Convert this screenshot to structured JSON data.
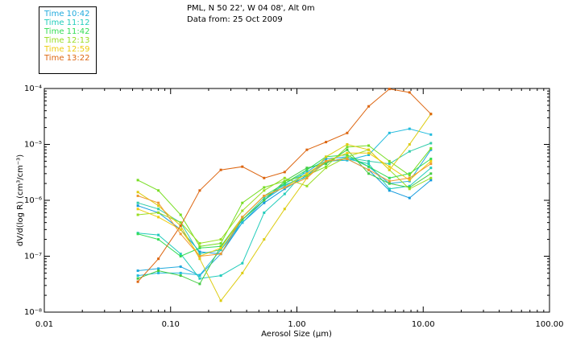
{
  "header": {
    "location": "PML, N 50 22', W 04 08', Alt 0m",
    "date_line": "Data from: 25 Oct 2009"
  },
  "legend": [
    {
      "label": "Time 10:42",
      "color": "#22aadd"
    },
    {
      "label": "Time 11:12",
      "color": "#22ccbb"
    },
    {
      "label": "Time 11:42",
      "color": "#33dd55"
    },
    {
      "label": "Time 12:13",
      "color": "#99dd22"
    },
    {
      "label": "Time 12:59",
      "color": "#eecc11"
    },
    {
      "label": "Time 13:22",
      "color": "#dd6611"
    }
  ],
  "chart_data": {
    "type": "line",
    "xscale": "log",
    "yscale": "log",
    "xlim": [
      0.01,
      100
    ],
    "ylim": [
      1e-08,
      0.0001
    ],
    "xlabel": "Aerosol Size (μm)",
    "ylabel": "dV/d(log R) (cm³/cm⁻³)",
    "x_ticks": [
      "0.01",
      "0.10",
      "1.00",
      "10.00",
      "100.00"
    ],
    "y_ticks": [
      "10⁻⁸",
      "10⁻⁷",
      "10⁻⁶",
      "10⁻⁵",
      "10⁻⁴"
    ],
    "x": [
      0.055,
      0.08,
      0.12,
      0.17,
      0.25,
      0.37,
      0.55,
      0.8,
      1.2,
      1.7,
      2.5,
      3.7,
      5.4,
      7.8,
      11.5
    ],
    "series": [
      {
        "name": "10:42 a",
        "color": "#1199dd",
        "values": [
          8e-07,
          6e-07,
          3e-07,
          1.2e-07,
          1.1e-07,
          4e-07,
          9e-07,
          1.6e-06,
          2.8e-06,
          5e-06,
          5.5e-06,
          3.5e-06,
          1.5e-06,
          1.1e-06,
          2.3e-06
        ]
      },
      {
        "name": "10:42 b",
        "color": "#22aadd",
        "values": [
          5.5e-08,
          6e-08,
          6.5e-08,
          4.5e-08,
          1.1e-07,
          4.5e-07,
          1e-06,
          2e-06,
          3.2e-06,
          5.5e-06,
          6e-06,
          4e-06,
          2e-06,
          2.2e-06,
          8e-06
        ]
      },
      {
        "name": "10:42 c",
        "color": "#22bbdd",
        "values": [
          4.5e-08,
          5e-08,
          5e-08,
          4.6e-08,
          1.3e-07,
          4e-07,
          1e-06,
          1.8e-06,
          3e-06,
          5e-06,
          5.2e-06,
          6.5e-06,
          1.6e-05,
          1.9e-05,
          1.5e-05
        ]
      },
      {
        "name": "11:12 a",
        "color": "#22ccbb",
        "values": [
          2.6e-07,
          2.4e-07,
          1.1e-07,
          4e-08,
          4.5e-08,
          7.5e-08,
          6e-07,
          1.3e-06,
          3.6e-06,
          5e-06,
          5.5e-06,
          4.5e-06,
          1.6e-06,
          1.8e-06,
          3.8e-06
        ]
      },
      {
        "name": "11:12 b",
        "color": "#33ccaa",
        "values": [
          9e-07,
          7e-07,
          4e-07,
          1.1e-07,
          1.3e-07,
          4.5e-07,
          1.1e-06,
          1.9e-06,
          2.6e-06,
          4.8e-06,
          5.8e-06,
          5e-06,
          4.5e-06,
          7.5e-06,
          1.05e-05
        ]
      },
      {
        "name": "11:42 a",
        "color": "#33dd55",
        "values": [
          2.5e-07,
          2e-07,
          1e-07,
          1.4e-07,
          1.5e-07,
          5e-07,
          1.2e-06,
          2e-06,
          3.5e-06,
          6e-06,
          6.5e-06,
          4e-06,
          2.5e-06,
          3e-06,
          5.5e-06
        ]
      },
      {
        "name": "11:42 b",
        "color": "#44cc44",
        "values": [
          4e-08,
          5.5e-08,
          4.5e-08,
          3.2e-08,
          1.5e-07,
          4.5e-07,
          1e-06,
          2.2e-06,
          3.8e-06,
          4.5e-06,
          8e-06,
          3e-06,
          2e-06,
          1.7e-06,
          3e-06
        ]
      },
      {
        "name": "12:13 a",
        "color": "#77dd22",
        "values": [
          2.3e-06,
          1.5e-06,
          5.5e-07,
          1.5e-07,
          1.7e-07,
          9e-07,
          1.7e-06,
          2.2e-06,
          2.8e-06,
          4e-06,
          9e-06,
          9.5e-06,
          5e-06,
          2.8e-06,
          8.5e-06
        ]
      },
      {
        "name": "12:13 b",
        "color": "#99dd22",
        "values": [
          5.5e-07,
          6e-07,
          4e-07,
          1.7e-07,
          2e-07,
          6.5e-07,
          1.5e-06,
          2.5e-06,
          1.8e-06,
          3.8e-06,
          6e-06,
          8e-06,
          3.5e-06,
          1.6e-06,
          2.5e-06
        ]
      },
      {
        "name": "12:59 a",
        "color": "#ddcc11",
        "values": [
          1.4e-06,
          8e-07,
          3.5e-07,
          9e-08,
          1.6e-08,
          5e-08,
          2e-07,
          7e-07,
          2.5e-06,
          6e-06,
          1e-05,
          8e-06,
          3.5e-06,
          1e-05,
          3.5e-05
        ]
      },
      {
        "name": "12:59 b",
        "color": "#eecc11",
        "values": [
          7e-07,
          5e-07,
          3e-07,
          1e-07,
          1.4e-07,
          5e-07,
          1.2e-06,
          1.7e-06,
          3e-06,
          5e-06,
          7e-06,
          7e-06,
          4e-06,
          2.3e-06,
          5e-06
        ]
      },
      {
        "name": "13:22 a",
        "color": "#dd6611",
        "values": [
          3.5e-08,
          9e-08,
          3.5e-07,
          1.5e-06,
          3.5e-06,
          4e-06,
          2.5e-06,
          3.2e-06,
          8e-06,
          1.1e-05,
          1.6e-05,
          4.8e-05,
          9.8e-05,
          8.5e-05,
          3.5e-05
        ]
      },
      {
        "name": "13:22 b",
        "color": "#ee9933",
        "values": [
          1.2e-06,
          9e-07,
          2.5e-07,
          1e-07,
          1.1e-07,
          5e-07,
          1.2e-06,
          1.7e-06,
          2.5e-06,
          5e-06,
          5.5e-06,
          3.5e-06,
          2.2e-06,
          2.5e-06,
          4.5e-06
        ]
      }
    ]
  }
}
